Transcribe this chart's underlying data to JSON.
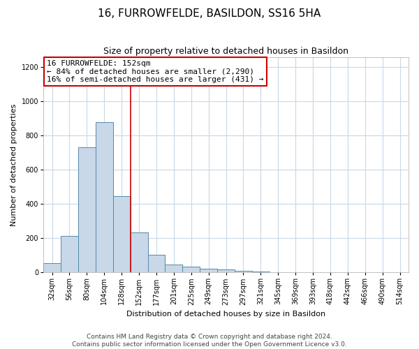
{
  "title": "16, FURROWFELDE, BASILDON, SS16 5HA",
  "subtitle": "Size of property relative to detached houses in Basildon",
  "xlabel": "Distribution of detached houses by size in Basildon",
  "ylabel": "Number of detached properties",
  "footer_line1": "Contains HM Land Registry data © Crown copyright and database right 2024.",
  "footer_line2": "Contains public sector information licensed under the Open Government Licence v3.0.",
  "annotation_line1": "16 FURROWFELDE: 152sqm",
  "annotation_line2": "← 84% of detached houses are smaller (2,290)",
  "annotation_line3": "16% of semi-detached houses are larger (431) →",
  "bar_color": "#c8d8e8",
  "bar_edge_color": "#5588aa",
  "vline_color": "#cc0000",
  "vline_bar_index": 5,
  "categories": [
    "32sqm",
    "56sqm",
    "80sqm",
    "104sqm",
    "128sqm",
    "152sqm",
    "177sqm",
    "201sqm",
    "225sqm",
    "249sqm",
    "273sqm",
    "297sqm",
    "321sqm",
    "345sqm",
    "369sqm",
    "393sqm",
    "418sqm",
    "442sqm",
    "466sqm",
    "490sqm",
    "514sqm"
  ],
  "values": [
    55,
    215,
    730,
    880,
    445,
    235,
    105,
    47,
    35,
    22,
    17,
    10,
    5,
    2,
    1,
    1,
    0,
    0,
    0,
    0,
    0
  ],
  "ylim": [
    0,
    1260
  ],
  "yticks": [
    0,
    200,
    400,
    600,
    800,
    1000,
    1200
  ],
  "figsize": [
    6.0,
    5.0
  ],
  "dpi": 100,
  "bg_color": "#ffffff",
  "grid_color": "#c8d8e8",
  "title_fontsize": 11,
  "subtitle_fontsize": 9,
  "axis_label_fontsize": 8,
  "tick_fontsize": 7,
  "footer_fontsize": 6.5,
  "annotation_fontsize": 8
}
